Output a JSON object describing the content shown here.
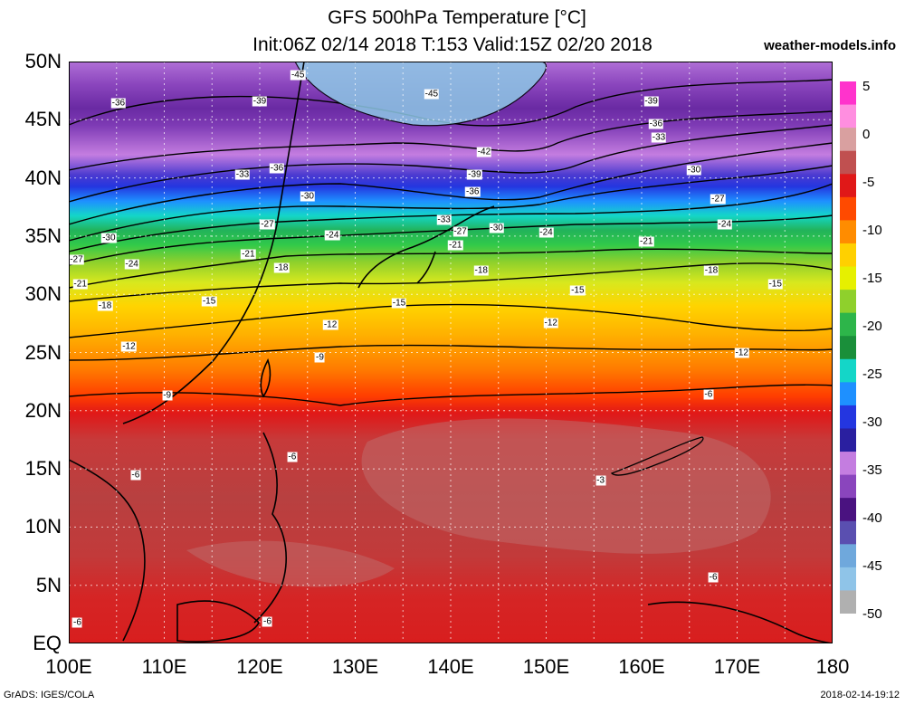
{
  "header": {
    "title_line1": "GFS 500hPa Temperature [°C]",
    "title_line2": "Init:06Z 02/14 2018 T:153 Valid:15Z 02/20 2018",
    "site": "weather-models.info"
  },
  "axes": {
    "lat_labels": [
      "50N",
      "45N",
      "40N",
      "35N",
      "30N",
      "25N",
      "20N",
      "15N",
      "10N",
      "5N",
      "EQ"
    ],
    "lon_labels": [
      "100E",
      "110E",
      "120E",
      "130E",
      "140E",
      "150E",
      "160E",
      "170E",
      "180"
    ],
    "lat_range": [
      0,
      50
    ],
    "lon_range": [
      100,
      180
    ],
    "grid": true
  },
  "colorbar": {
    "ticks": [
      "5",
      "0",
      "-5",
      "-10",
      "-15",
      "-20",
      "-25",
      "-30",
      "-35",
      "-40",
      "-45",
      "-50"
    ],
    "colors": [
      "#ff33cc",
      "#ff8ee0",
      "#d9a0a0",
      "#c05050",
      "#e01818",
      "#ff4a00",
      "#ff8c00",
      "#ffd000",
      "#e6f000",
      "#8fd02c",
      "#2db54a",
      "#1a8f3a",
      "#14d6c8",
      "#1e90ff",
      "#2436e0",
      "#2a1fa0",
      "#c47de0",
      "#8a45bd",
      "#4a1280",
      "#5a4fb0",
      "#6fa8dc",
      "#8fc4e8",
      "#b0b0b0"
    ]
  },
  "contour_labels": [
    {
      "text": "-45",
      "lon": 124.0,
      "lat": 48.8
    },
    {
      "text": "-45",
      "lon": 138.0,
      "lat": 47.2
    },
    {
      "text": "-36",
      "lon": 105.2,
      "lat": 46.4
    },
    {
      "text": "-39",
      "lon": 120.0,
      "lat": 46.6
    },
    {
      "text": "-39",
      "lon": 161.0,
      "lat": 46.6
    },
    {
      "text": "-36",
      "lon": 161.5,
      "lat": 44.6
    },
    {
      "text": "-42",
      "lon": 143.5,
      "lat": 42.2
    },
    {
      "text": "-33",
      "lon": 161.8,
      "lat": 43.5
    },
    {
      "text": "-36",
      "lon": 121.8,
      "lat": 40.8
    },
    {
      "text": "-33",
      "lon": 118.2,
      "lat": 40.3
    },
    {
      "text": "-39",
      "lon": 142.5,
      "lat": 40.3
    },
    {
      "text": "-30",
      "lon": 165.5,
      "lat": 40.7
    },
    {
      "text": "-36",
      "lon": 142.3,
      "lat": 38.8
    },
    {
      "text": "-30",
      "lon": 125.0,
      "lat": 38.4
    },
    {
      "text": "-27",
      "lon": 168.0,
      "lat": 38.2
    },
    {
      "text": "-33",
      "lon": 139.3,
      "lat": 36.4
    },
    {
      "text": "-27",
      "lon": 120.8,
      "lat": 36.0
    },
    {
      "text": "-27",
      "lon": 141.0,
      "lat": 35.4
    },
    {
      "text": "-30",
      "lon": 144.8,
      "lat": 35.7
    },
    {
      "text": "-24",
      "lon": 150.0,
      "lat": 35.3
    },
    {
      "text": "-24",
      "lon": 168.7,
      "lat": 36.0
    },
    {
      "text": "-24",
      "lon": 127.6,
      "lat": 35.1
    },
    {
      "text": "-30",
      "lon": 104.2,
      "lat": 34.8
    },
    {
      "text": "-21",
      "lon": 140.5,
      "lat": 34.2
    },
    {
      "text": "-21",
      "lon": 160.5,
      "lat": 34.5
    },
    {
      "text": "-21",
      "lon": 118.8,
      "lat": 33.4
    },
    {
      "text": "-27",
      "lon": 100.8,
      "lat": 33.0
    },
    {
      "text": "-24",
      "lon": 106.6,
      "lat": 32.6
    },
    {
      "text": "-18",
      "lon": 122.3,
      "lat": 32.3
    },
    {
      "text": "-18",
      "lon": 143.2,
      "lat": 32.0
    },
    {
      "text": "-18",
      "lon": 167.3,
      "lat": 32.0
    },
    {
      "text": "-21",
      "lon": 101.2,
      "lat": 30.9
    },
    {
      "text": "-15",
      "lon": 174.0,
      "lat": 30.9
    },
    {
      "text": "-15",
      "lon": 153.3,
      "lat": 30.3
    },
    {
      "text": "-15",
      "lon": 114.7,
      "lat": 29.4
    },
    {
      "text": "-15",
      "lon": 134.6,
      "lat": 29.2
    },
    {
      "text": "-18",
      "lon": 103.8,
      "lat": 29.0
    },
    {
      "text": "-12",
      "lon": 127.4,
      "lat": 27.4
    },
    {
      "text": "-12",
      "lon": 150.5,
      "lat": 27.5
    },
    {
      "text": "-12",
      "lon": 106.3,
      "lat": 25.5
    },
    {
      "text": "-12",
      "lon": 170.5,
      "lat": 25.0
    },
    {
      "text": "-9",
      "lon": 126.3,
      "lat": 24.6
    },
    {
      "text": "-9",
      "lon": 110.3,
      "lat": 21.3
    },
    {
      "text": "-6",
      "lon": 167.0,
      "lat": 21.4
    },
    {
      "text": "-6",
      "lon": 123.4,
      "lat": 16.0
    },
    {
      "text": "-6",
      "lon": 107.0,
      "lat": 14.5
    },
    {
      "text": "-3",
      "lon": 155.7,
      "lat": 14.0
    },
    {
      "text": "-6",
      "lon": 167.5,
      "lat": 5.7
    },
    {
      "text": "-6",
      "lon": 120.8,
      "lat": 1.9
    },
    {
      "text": "-6",
      "lon": 100.9,
      "lat": 1.8
    }
  ],
  "footer": {
    "left": "GrADS: IGES/COLA",
    "right": "2018-02-14-19:12"
  }
}
